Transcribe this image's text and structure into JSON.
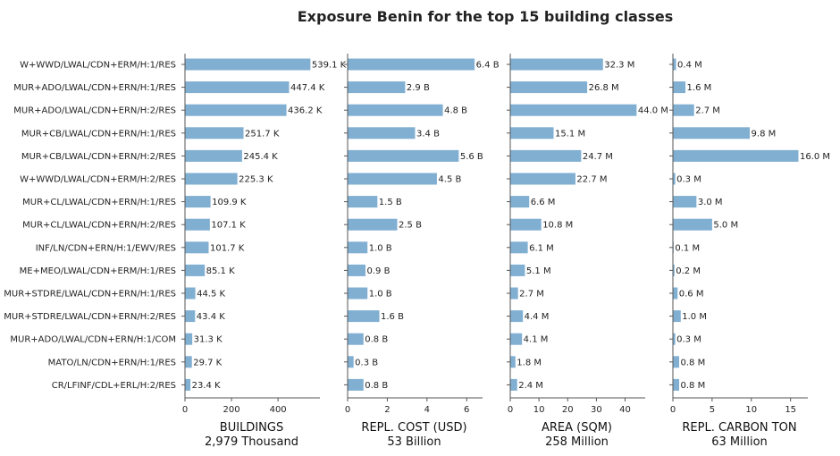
{
  "chart_data": {
    "title": "Exposure Benin for the top 15 building classes",
    "type": "bar",
    "orientation": "horizontal",
    "bar_color": "#80afd2",
    "axis_color": "#555555",
    "categories": [
      "W+WWD/LWAL/CDN+ERM/H:1/RES",
      "MUR+ADO/LWAL/CDN+ERN/H:1/RES",
      "MUR+ADO/LWAL/CDN+ERN/H:2/RES",
      "MUR+CB/LWAL/CDN+ERN/H:1/RES",
      "MUR+CB/LWAL/CDN+ERN/H:2/RES",
      "W+WWD/LWAL/CDN+ERM/H:2/RES",
      "MUR+CL/LWAL/CDN+ERN/H:1/RES",
      "MUR+CL/LWAL/CDN+ERN/H:2/RES",
      "INF/LN/CDN+ERN/H:1/EWV/RES",
      "ME+MEO/LWAL/CDN+ERM/H:1/RES",
      "MUR+STDRE/LWAL/CDN+ERN/H:1/RES",
      "MUR+STDRE/LWAL/CDN+ERN/H:2/RES",
      "MUR+ADO/LWAL/CDN+ERN/H:1/COM",
      "MATO/LN/CDN+ERN/H:1/RES",
      "CR/LFINF/CDL+ERL/H:2/RES"
    ],
    "panels": [
      {
        "xlabel": "BUILDINGS",
        "total": "2,979 Thousand",
        "xlim": [
          0,
          580
        ],
        "ticks": [
          0,
          200,
          400
        ],
        "tick_labels": [
          "0",
          "200",
          "400"
        ],
        "values": [
          539.1,
          447.4,
          436.2,
          251.7,
          245.4,
          225.3,
          109.9,
          107.1,
          101.7,
          85.1,
          44.5,
          43.4,
          31.3,
          29.7,
          23.4
        ],
        "labels": [
          "539.1 K",
          "447.4 K",
          "436.2 K",
          "251.7 K",
          "245.4 K",
          "225.3 K",
          "109.9 K",
          "107.1 K",
          "101.7 K",
          "85.1 K",
          "44.5 K",
          "43.4 K",
          "31.3 K",
          "29.7 K",
          "23.4 K"
        ]
      },
      {
        "xlabel": "REPL. COST (USD)",
        "total": "53 Billion",
        "xlim": [
          0,
          6.8
        ],
        "ticks": [
          0,
          2,
          4,
          6
        ],
        "tick_labels": [
          "0",
          "2",
          "4",
          "6"
        ],
        "values": [
          6.4,
          2.9,
          4.8,
          3.4,
          5.6,
          4.5,
          1.5,
          2.5,
          1.0,
          0.9,
          1.0,
          1.6,
          0.8,
          0.3,
          0.8
        ],
        "labels": [
          "6.4 B",
          "2.9 B",
          "4.8 B",
          "3.4 B",
          "5.6 B",
          "4.5 B",
          "1.5 B",
          "2.5 B",
          "1.0 B",
          "0.9 B",
          "1.0 B",
          "1.6 B",
          "0.8 B",
          "0.3 B",
          "0.8 B"
        ]
      },
      {
        "xlabel": "AREA (SQM)",
        "total": "258 Million",
        "xlim": [
          0,
          47
        ],
        "ticks": [
          0,
          10,
          20,
          30,
          40
        ],
        "tick_labels": [
          "0",
          "10",
          "20",
          "30",
          "40"
        ],
        "values": [
          32.3,
          26.8,
          44.0,
          15.1,
          24.7,
          22.7,
          6.6,
          10.8,
          6.1,
          5.1,
          2.7,
          4.4,
          4.1,
          1.8,
          2.4
        ],
        "labels": [
          "32.3 M",
          "26.8 M",
          "44.0 M",
          "15.1 M",
          "24.7 M",
          "22.7 M",
          "6.6 M",
          "10.8 M",
          "6.1 M",
          "5.1 M",
          "2.7 M",
          "4.4 M",
          "4.1 M",
          "1.8 M",
          "2.4 M"
        ]
      },
      {
        "xlabel": "REPL. CARBON TON",
        "total": "63 Million",
        "xlim": [
          0,
          17.2
        ],
        "ticks": [
          0,
          5,
          10,
          15
        ],
        "tick_labels": [
          "0",
          "5",
          "10",
          "15"
        ],
        "values": [
          0.4,
          1.6,
          2.7,
          9.8,
          16.0,
          0.3,
          3.0,
          5.0,
          0.1,
          0.2,
          0.6,
          1.0,
          0.3,
          0.8,
          0.8
        ],
        "labels": [
          "0.4 M",
          "1.6 M",
          "2.7 M",
          "9.8 M",
          "16.0 M",
          "0.3 M",
          "3.0 M",
          "5.0 M",
          "0.1 M",
          "0.2 M",
          "0.6 M",
          "1.0 M",
          "0.3 M",
          "0.8 M",
          "0.8 M"
        ]
      }
    ]
  }
}
